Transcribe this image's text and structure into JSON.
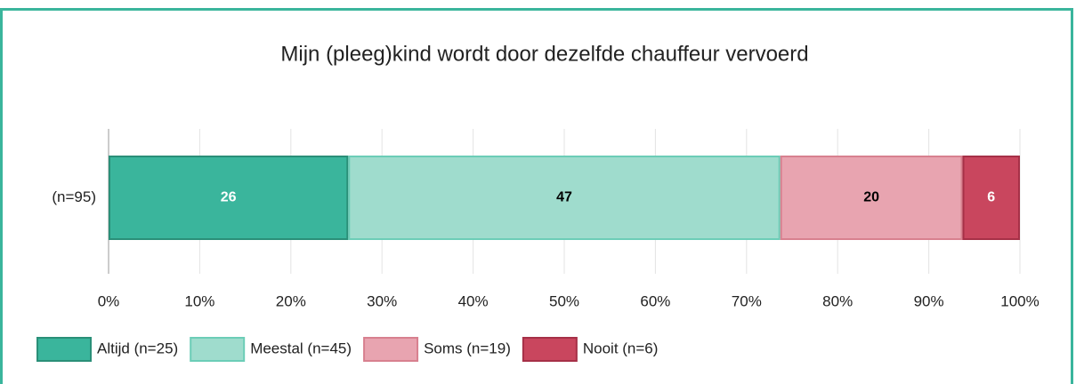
{
  "chart_data": {
    "type": "stacked-bar-horizontal",
    "title": "Mijn (pleeg)kind wordt door dezelfde chauffeur vervoerd",
    "categories": [
      "(n=95)"
    ],
    "series": [
      {
        "name": "Altijd (n=25)",
        "color": "#3ab59c",
        "border": "#2a8f78",
        "values": [
          26.3
        ],
        "value_labels": [
          "26"
        ]
      },
      {
        "name": "Meestal (n=45)",
        "color": "#9fdccd",
        "border": "#6ccdb7",
        "values": [
          47.4
        ],
        "value_labels": [
          "47"
        ]
      },
      {
        "name": "Soms (n=19)",
        "color": "#e8a4b0",
        "border": "#d8808f",
        "values": [
          20.0
        ],
        "value_labels": [
          "20"
        ]
      },
      {
        "name": "Nooit (n=6)",
        "color": "#c9465e",
        "border": "#a63047",
        "values": [
          6.3
        ],
        "value_labels": [
          "6"
        ]
      }
    ],
    "xlim": [
      0,
      100
    ],
    "xticks": [
      {
        "value": 0,
        "label": "0%"
      },
      {
        "value": 10,
        "label": "10%"
      },
      {
        "value": 20,
        "label": "20%"
      },
      {
        "value": 30,
        "label": "30%"
      },
      {
        "value": 40,
        "label": "40%"
      },
      {
        "value": 50,
        "label": "50%"
      },
      {
        "value": 60,
        "label": "60%"
      },
      {
        "value": 70,
        "label": "70%"
      },
      {
        "value": 80,
        "label": "80%"
      },
      {
        "value": 90,
        "label": "90%"
      },
      {
        "value": 100,
        "label": "100%"
      }
    ],
    "grid": true,
    "legend": "bottom-left"
  }
}
